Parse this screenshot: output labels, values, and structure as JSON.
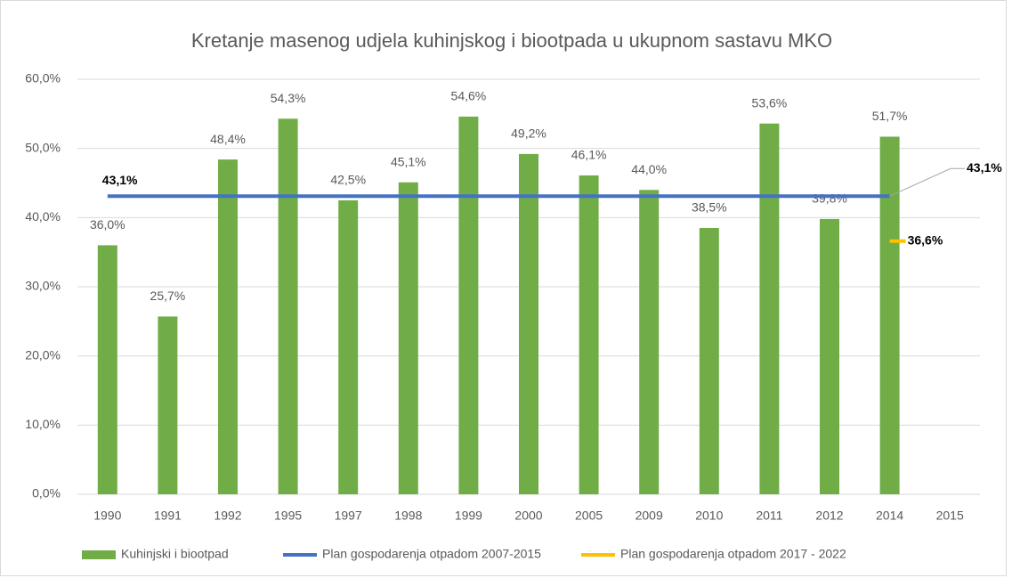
{
  "chart_data": {
    "type": "bar",
    "title": "Kretanje masenog udjela kuhinjskog i biootpada u ukupnom sastavu MKO",
    "categories": [
      "1990",
      "1991",
      "1992",
      "1995",
      "1997",
      "1998",
      "1999",
      "2000",
      "2005",
      "2009",
      "2010",
      "2011",
      "2012",
      "2014",
      "2015"
    ],
    "series": [
      {
        "name": "Kuhinjski i biootpad",
        "type": "bar",
        "color": "#70ad47",
        "values": [
          36.0,
          25.7,
          48.4,
          54.3,
          42.5,
          45.1,
          54.6,
          49.2,
          46.1,
          44.0,
          38.5,
          53.6,
          39.8,
          51.7,
          null
        ],
        "value_labels": [
          "36,0%",
          "25,7%",
          "48,4%",
          "54,3%",
          "42,5%",
          "45,1%",
          "54,6%",
          "49,2%",
          "46,1%",
          "44,0%",
          "38,5%",
          "53,6%",
          "39,8%",
          "51,7%",
          null
        ]
      },
      {
        "name": "Plan gospodarenja otpadom 2007-2015",
        "type": "line",
        "color": "#4472c4",
        "values": [
          43.1,
          43.1,
          43.1,
          43.1,
          43.1,
          43.1,
          43.1,
          43.1,
          43.1,
          43.1,
          43.1,
          43.1,
          43.1,
          43.1,
          null
        ],
        "value_labels": [
          "43,1%",
          null,
          null,
          null,
          null,
          null,
          null,
          null,
          null,
          null,
          null,
          null,
          null,
          "43,1%",
          null
        ]
      },
      {
        "name": "Plan gospodarenja otpadom 2017 - 2022",
        "type": "line",
        "color": "#ffc000",
        "values": [
          null,
          null,
          null,
          null,
          null,
          null,
          null,
          null,
          null,
          null,
          null,
          null,
          null,
          36.6,
          null
        ],
        "value_labels": [
          null,
          null,
          null,
          null,
          null,
          null,
          null,
          null,
          null,
          null,
          null,
          null,
          null,
          "36,6%",
          null
        ]
      }
    ],
    "ylim": [
      0,
      60
    ],
    "yticks": [
      {
        "value": 0,
        "label": "0,0%"
      },
      {
        "value": 10,
        "label": "10,0%"
      },
      {
        "value": 20,
        "label": "20,0%"
      },
      {
        "value": 30,
        "label": "30,0%"
      },
      {
        "value": 40,
        "label": "40,0%"
      },
      {
        "value": 50,
        "label": "50,0%"
      },
      {
        "value": 60,
        "label": "60,0%"
      }
    ],
    "grid": true,
    "legend": "bottom"
  }
}
